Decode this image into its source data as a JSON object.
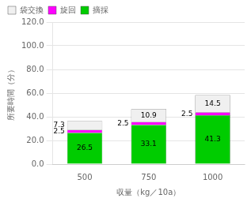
{
  "chart_data": {
    "type": "bar",
    "stacked": true,
    "categories": [
      "500",
      "750",
      "1000"
    ],
    "series": [
      {
        "name": "摘採",
        "color": "#00cc00",
        "values": [
          26.5,
          33.1,
          41.3
        ]
      },
      {
        "name": "旋回",
        "color": "#ff00ff",
        "values": [
          2.5,
          2.5,
          2.5
        ]
      },
      {
        "name": "袋交換",
        "color": "#f0f0f0",
        "values": [
          7.3,
          10.9,
          14.5
        ]
      }
    ],
    "xlabel": "収量（kg／10a）",
    "ylabel": "所要時間（分）",
    "ylim": [
      0,
      120
    ],
    "yticks": [
      {
        "value": 0,
        "label": "0.0"
      },
      {
        "value": 20,
        "label": "20.0"
      },
      {
        "value": 40,
        "label": "40.0"
      },
      {
        "value": 60,
        "label": "60.0"
      },
      {
        "value": 80,
        "label": "80.0"
      },
      {
        "value": 100,
        "label": "100.0"
      },
      {
        "value": 120,
        "label": "120.0"
      }
    ],
    "grid": true,
    "legend": "upper left",
    "data_labels": true
  }
}
